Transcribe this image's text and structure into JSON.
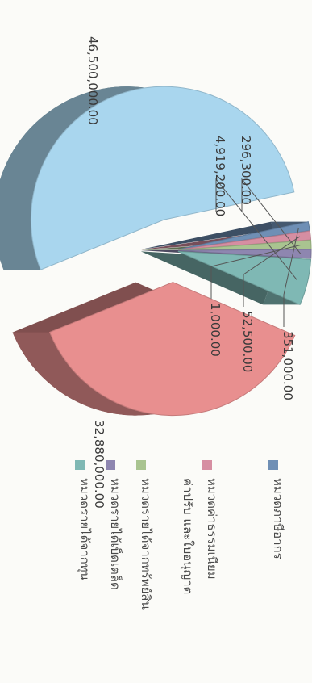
{
  "chart_data": {
    "type": "pie",
    "three_d": true,
    "exploded": true,
    "orientation": "rotated-90-clockwise",
    "legend_position": "right",
    "slices": [
      {
        "label": "หมวดภาษีอากร",
        "value": 351000.0,
        "value_label": "351,000.00",
        "color": "#6f8fb5"
      },
      {
        "label": "หมวดค่าธรรมเนียม ค่าปรับ และใบอนุญาต",
        "value": 52500.0,
        "value_label": "52,500.00",
        "color": "#d68ea2"
      },
      {
        "label": "หมวดรายได้จากทรัพย์สิน",
        "value": 1000.0,
        "value_label": "1,000.00",
        "color": "#a9c490"
      },
      {
        "label": "หมวดรายได้เบ็ดเตล็ด",
        "value": 296300.0,
        "value_label": "296,300.00",
        "color": "#8e86b0"
      },
      {
        "label": "หมวดรายได้จากทุน",
        "value": 4919200.0,
        "value_label": "4,919,200.00",
        "color": "#7fb8b4"
      },
      {
        "label": "",
        "value": 32880000.0,
        "value_label": "32,880,000.00",
        "color": "#e88f8f"
      },
      {
        "label": "",
        "value": 46500000.0,
        "value_label": "46,500,000.00",
        "color": "#a9d6ee"
      }
    ]
  }
}
